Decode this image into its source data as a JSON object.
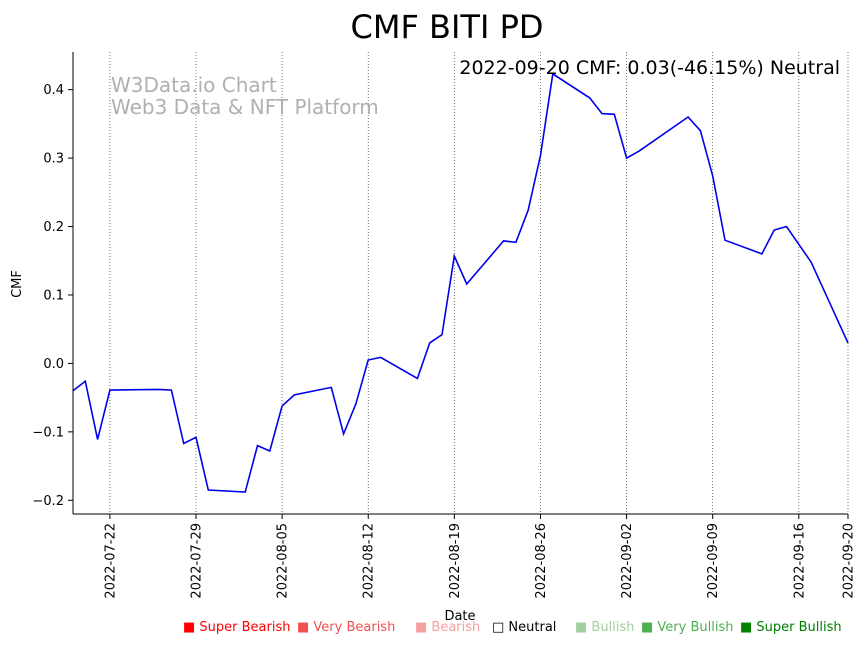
{
  "chart_data": {
    "type": "line",
    "title": "CMF BITI PD",
    "annotation": "2022-09-20 CMF: 0.03(-46.15%) Neutral",
    "watermark": [
      "W3Data.io Chart",
      "Web3 Data & NFT Platform"
    ],
    "xlabel": "Date",
    "ylabel": "CMF",
    "ylim": [
      -0.22,
      0.455
    ],
    "xlim": [
      "2022-07-19",
      "2022-09-20"
    ],
    "grid": "vertical dotted lines at x ticks",
    "x_ticks": [
      "2022-07-22",
      "2022-07-29",
      "2022-08-05",
      "2022-08-12",
      "2022-08-19",
      "2022-08-26",
      "2022-09-02",
      "2022-09-09",
      "2022-09-16",
      "2022-09-20"
    ],
    "y_ticks": [
      -0.2,
      -0.1,
      0.0,
      0.1,
      0.2,
      0.3,
      0.4
    ],
    "y_tick_labels": [
      "−0.2",
      "−0.1",
      "0.0",
      "0.1",
      "0.2",
      "0.3",
      "0.4"
    ],
    "series": [
      {
        "color": "#0000ee",
        "points": [
          [
            "2022-07-19",
            -0.04
          ],
          [
            "2022-07-20",
            -0.026
          ],
          [
            "2022-07-21",
            -0.111
          ],
          [
            "2022-07-22",
            -0.039
          ],
          [
            "2022-07-26",
            -0.038
          ],
          [
            "2022-07-27",
            -0.039
          ],
          [
            "2022-07-28",
            -0.117
          ],
          [
            "2022-07-29",
            -0.108
          ],
          [
            "2022-07-30",
            -0.185
          ],
          [
            "2022-08-02",
            -0.188
          ],
          [
            "2022-08-03",
            -0.12
          ],
          [
            "2022-08-04",
            -0.128
          ],
          [
            "2022-08-05",
            -0.062
          ],
          [
            "2022-08-06",
            -0.046
          ],
          [
            "2022-08-09",
            -0.035
          ],
          [
            "2022-08-10",
            -0.103
          ],
          [
            "2022-08-11",
            -0.059
          ],
          [
            "2022-08-12",
            0.005
          ],
          [
            "2022-08-13",
            0.009
          ],
          [
            "2022-08-16",
            -0.022
          ],
          [
            "2022-08-17",
            0.03
          ],
          [
            "2022-08-18",
            0.042
          ],
          [
            "2022-08-19",
            0.157
          ],
          [
            "2022-08-20",
            0.116
          ],
          [
            "2022-08-23",
            0.179
          ],
          [
            "2022-08-24",
            0.177
          ],
          [
            "2022-08-25",
            0.224
          ],
          [
            "2022-08-26",
            0.304
          ],
          [
            "2022-08-27",
            0.423
          ],
          [
            "2022-08-30",
            0.388
          ],
          [
            "2022-08-31",
            0.365
          ],
          [
            "2022-09-01",
            0.364
          ],
          [
            "2022-09-02",
            0.3
          ],
          [
            "2022-09-03",
            0.31
          ],
          [
            "2022-09-07",
            0.36
          ],
          [
            "2022-09-08",
            0.34
          ],
          [
            "2022-09-09",
            0.274
          ],
          [
            "2022-09-10",
            0.18
          ],
          [
            "2022-09-13",
            0.16
          ],
          [
            "2022-09-14",
            0.195
          ],
          [
            "2022-09-15",
            0.2
          ],
          [
            "2022-09-17",
            0.148
          ],
          [
            "2022-09-20",
            0.03
          ]
        ]
      }
    ],
    "legend": [
      {
        "label": "■ Super Bearish",
        "color": "#ff0000"
      },
      {
        "label": "■ Very Bearish",
        "color": "#f05050"
      },
      {
        "label": "■ Bearish",
        "color": "#f5a0a0"
      },
      {
        "label": "□ Neutral",
        "color": "#000000"
      },
      {
        "label": "■ Bullish",
        "color": "#a0d0a0"
      },
      {
        "label": "■ Very Bullish",
        "color": "#4caf50"
      },
      {
        "label": "■ Super Bullish",
        "color": "#008000"
      }
    ]
  }
}
